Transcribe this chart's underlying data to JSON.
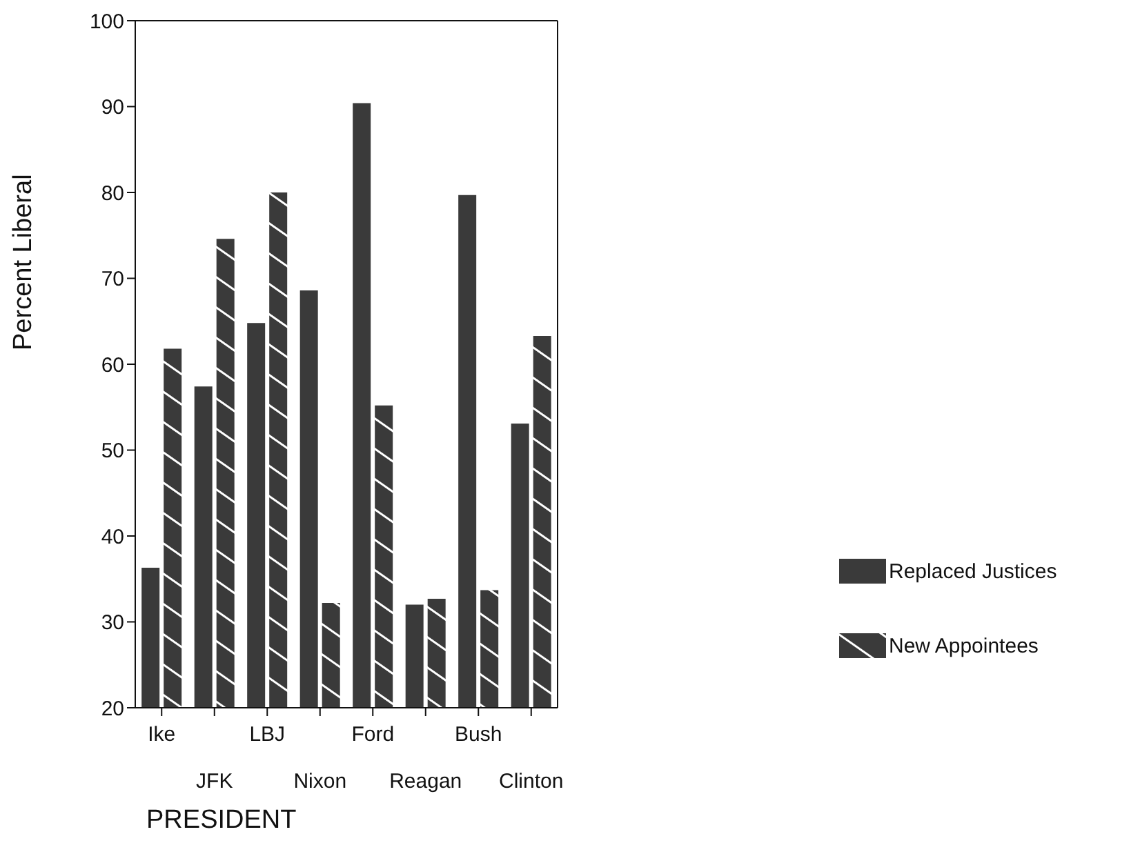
{
  "chart_data": {
    "type": "bar",
    "ylabel": "Percent Liberal",
    "xlabel": "PRESIDENT",
    "categories": [
      "Ike",
      "JFK",
      "LBJ",
      "Nixon",
      "Ford",
      "Reagan",
      "Bush",
      "Clinton"
    ],
    "series": [
      {
        "name": "Replaced Justices",
        "color": "#3a3a3a",
        "values": [
          36.3,
          57.4,
          64.8,
          68.6,
          90.4,
          32,
          79.7,
          53.1
        ]
      },
      {
        "name": "New Appointees",
        "color": "#3a3a3a",
        "values": [
          61.8,
          74.6,
          80,
          32.2,
          55.2,
          32.7,
          33.7,
          63.3
        ]
      }
    ],
    "ylim": [
      20,
      100
    ],
    "yticks": [
      20,
      30,
      40,
      50,
      60,
      70,
      80,
      90,
      100
    ],
    "grid": false,
    "legend": "bottom right"
  }
}
